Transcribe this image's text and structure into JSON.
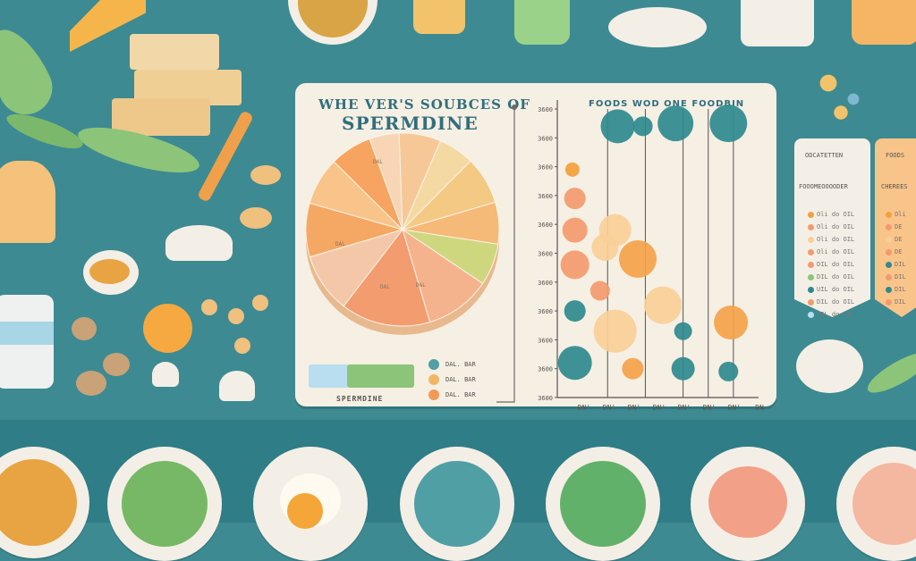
{
  "title_line1": "WHE VER'S SOUBCES OF",
  "title_line2": "SPERMDINE",
  "bubble_title": "FOODS WOD ONE FOODBIN",
  "legend": {
    "bar_label": "SPERMDINE",
    "swatch_colors": [
      "#b8def0",
      "#8cc47a"
    ],
    "dots": [
      {
        "label": "DAL. BAR",
        "color": "#4f9fa5"
      },
      {
        "label": "DAL. BAR",
        "color": "#f2b766"
      },
      {
        "label": "DAL. BAR",
        "color": "#f29a57"
      }
    ]
  },
  "chart_data": [
    {
      "type": "pie",
      "title": "WHE VER'S SOUBCES OF SPERMDINE",
      "slices": [
        {
          "value": 5,
          "color": "#f7d5b5"
        },
        {
          "value": 7,
          "color": "#f6c898"
        },
        {
          "value": 6,
          "color": "#f5d9a3"
        },
        {
          "value": 8,
          "color": "#f3c984"
        },
        {
          "value": 7,
          "color": "#f5b978"
        },
        {
          "value": 7,
          "color": "#cfd77e"
        },
        {
          "value": 11,
          "color": "#f5b38d"
        },
        {
          "value": 15,
          "color": "#f39c70"
        },
        {
          "value": 10,
          "color": "#f4c7a9"
        },
        {
          "value": 9,
          "color": "#f4a863"
        },
        {
          "value": 8,
          "color": "#f8c48a"
        },
        {
          "value": 7,
          "color": "#f7a460"
        }
      ],
      "slice_labels": [
        "DAL",
        "DAL",
        "DAL",
        "DAL"
      ]
    },
    {
      "type": "scatter",
      "title": "FOODS WOD ONE FOODBIN",
      "y_ticks": [
        "3600",
        "3600",
        "3600",
        "3600",
        "3600",
        "3600",
        "3600",
        "3600",
        "3600",
        "3600",
        "3600"
      ],
      "x_ticks": [
        "DN'",
        "DN'",
        "DN'",
        "DN'",
        "DN'",
        "DN'",
        "DN'",
        "DN"
      ],
      "ylim": [
        0,
        10
      ],
      "xlim": [
        0,
        8
      ],
      "points": [
        {
          "x": 2.4,
          "y": 9.4,
          "r": 19,
          "color": "#2e8a8e"
        },
        {
          "x": 3.4,
          "y": 9.4,
          "r": 11,
          "color": "#2e8a8e"
        },
        {
          "x": 4.7,
          "y": 9.5,
          "r": 20,
          "color": "#2e8a8e"
        },
        {
          "x": 6.8,
          "y": 9.5,
          "r": 21,
          "color": "#2e8a8e"
        },
        {
          "x": 0.6,
          "y": 7.9,
          "r": 8,
          "color": "#f2a13c"
        },
        {
          "x": 0.7,
          "y": 6.9,
          "r": 12,
          "color": "#f39a6e"
        },
        {
          "x": 0.7,
          "y": 5.8,
          "r": 14,
          "color": "#f39a6e"
        },
        {
          "x": 2.3,
          "y": 5.8,
          "r": 18,
          "color": "#f8cf97"
        },
        {
          "x": 1.9,
          "y": 5.2,
          "r": 15,
          "color": "#f8cf97"
        },
        {
          "x": 0.7,
          "y": 4.6,
          "r": 16,
          "color": "#f39a6e"
        },
        {
          "x": 3.2,
          "y": 4.8,
          "r": 21,
          "color": "#f4a24a"
        },
        {
          "x": 1.7,
          "y": 3.7,
          "r": 11,
          "color": "#f39a6e"
        },
        {
          "x": 0.7,
          "y": 3.0,
          "r": 12,
          "color": "#2e8a8e"
        },
        {
          "x": 4.2,
          "y": 3.2,
          "r": 21,
          "color": "#f8cf97"
        },
        {
          "x": 2.3,
          "y": 2.3,
          "r": 24,
          "color": "#f8cf97"
        },
        {
          "x": 5.0,
          "y": 2.3,
          "r": 10,
          "color": "#2e8a8e"
        },
        {
          "x": 6.9,
          "y": 2.6,
          "r": 19,
          "color": "#f4a24a"
        },
        {
          "x": 0.7,
          "y": 1.2,
          "r": 19,
          "color": "#2e8a8e"
        },
        {
          "x": 3.0,
          "y": 1.0,
          "r": 12,
          "color": "#f4a24a"
        },
        {
          "x": 5.0,
          "y": 1.0,
          "r": 13,
          "color": "#2e8a8e"
        },
        {
          "x": 6.8,
          "y": 0.9,
          "r": 11,
          "color": "#2e8a8e"
        }
      ]
    }
  ],
  "tags": [
    {
      "header": "ODCATETTEN",
      "sub": "FOOOMEOOOODER",
      "rows": [
        "Oli do OIL",
        "Oli do OIL",
        "Oli do OIL",
        "Oli do OIL",
        "DIL do OIL",
        "DIL do OIL",
        "UIL do OIL",
        "DIL do OIL",
        "DIL do OIL"
      ],
      "dots": [
        "#f2a13c",
        "#f39a6e",
        "#f8cf97",
        "#f39a6e",
        "#f39a6e",
        "#8cc47a",
        "#2e8a8e",
        "#f39a6e",
        "#b8def0"
      ]
    },
    {
      "header": "FOODS",
      "sub": "CHEREES",
      "rows": [
        "Oli",
        "DE",
        "DE",
        "DE",
        "DIL",
        "DIL",
        "DIL",
        "DIL"
      ],
      "dots": [
        "#f2a13c",
        "#f39a6e",
        "#f8cf97",
        "#f39a6e",
        "#2e8a8e",
        "#f39a6e",
        "#2e8a8e",
        "#f39a6e"
      ]
    }
  ]
}
